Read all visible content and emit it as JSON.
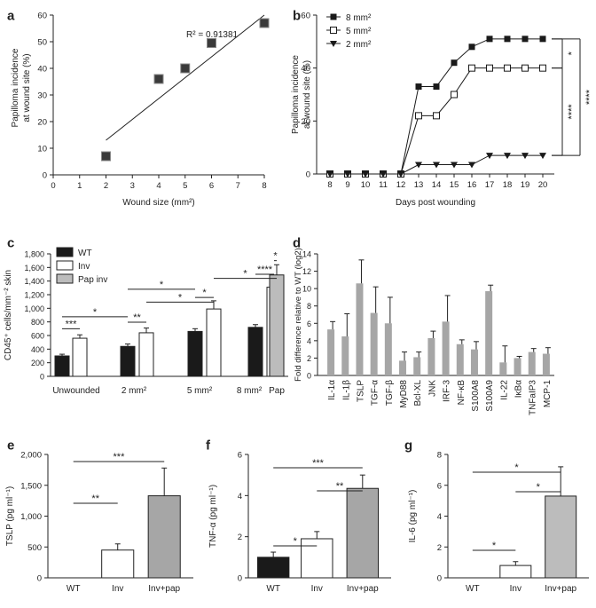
{
  "panel_labels": {
    "a": "a",
    "b": "b",
    "c": "c",
    "d": "d",
    "e": "e",
    "f": "f",
    "g": "g"
  },
  "colors": {
    "black": "#1a1a1a",
    "gray": "#bcbcbc",
    "dgray": "#a6a6a6",
    "white": "#ffffff",
    "axis": "#222222"
  },
  "chart_data": [
    {
      "id": "a",
      "type": "scatter",
      "xlabel": "Wound size (mm²)",
      "ylabel": [
        "Papilloma incidence",
        "at wound site (%)"
      ],
      "xlim": [
        0,
        8
      ],
      "ylim": [
        0,
        60
      ],
      "xticks": [
        "0",
        "1",
        "2",
        "3",
        "4",
        "5",
        "6",
        "7",
        "8"
      ],
      "yticks": [
        "0",
        "10",
        "20",
        "30",
        "40",
        "50",
        "60"
      ],
      "annotation": "R² = 0.91381",
      "x": [
        2,
        4,
        5,
        6,
        8
      ],
      "y": [
        7,
        36,
        40,
        49.5,
        57
      ],
      "fit": {
        "x": [
          2,
          8
        ],
        "y": [
          13,
          60
        ]
      }
    },
    {
      "id": "b",
      "type": "line",
      "xlabel": "Days post wounding",
      "ylabel": [
        "Papilloma incidence",
        "at wound site (%)"
      ],
      "categories": [
        "8",
        "9",
        "10",
        "11",
        "12",
        "13",
        "14",
        "15",
        "16",
        "17",
        "18",
        "19",
        "20"
      ],
      "ylim": [
        0,
        60
      ],
      "yticks": [
        "0",
        "20",
        "40",
        "60"
      ],
      "series": [
        {
          "name": "8 mm²",
          "marker": "square-filled",
          "values": [
            0,
            0,
            0,
            0,
            0,
            33,
            33,
            42,
            48,
            51,
            51,
            51,
            51
          ]
        },
        {
          "name": "5 mm²",
          "marker": "square-open",
          "values": [
            0,
            0,
            0,
            0,
            0,
            22,
            22,
            30,
            40,
            40,
            40,
            40,
            40
          ]
        },
        {
          "name": "2 mm²",
          "marker": "triangle-down",
          "values": [
            0,
            0,
            0,
            0,
            0,
            3.5,
            3.5,
            3.5,
            3.5,
            7,
            7,
            7,
            7
          ]
        }
      ],
      "significance": [
        "*",
        "****",
        "****"
      ]
    },
    {
      "id": "c",
      "type": "bar",
      "ylabel": "CD45⁺ cells/mm⁻² skin",
      "ylim": [
        0,
        1800
      ],
      "yticks": [
        "0",
        "200",
        "400",
        "600",
        "800",
        "1,000",
        "1,200",
        "1,400",
        "1,600",
        "1,800"
      ],
      "groups": [
        "Unwounded",
        "2 mm²",
        "5 mm²",
        "8 mm²",
        "Pap"
      ],
      "legend": [
        "WT",
        "Inv",
        "Pap inv"
      ],
      "bars": [
        {
          "group": "Unwounded",
          "series": "WT",
          "value": 300,
          "err": 25
        },
        {
          "group": "Unwounded",
          "series": "Inv",
          "value": 560,
          "err": 50
        },
        {
          "group": "2 mm²",
          "series": "WT",
          "value": 440,
          "err": 35
        },
        {
          "group": "2 mm²",
          "series": "Inv",
          "value": 640,
          "err": 70
        },
        {
          "group": "5 mm²",
          "series": "WT",
          "value": 660,
          "err": 40
        },
        {
          "group": "5 mm²",
          "series": "Inv",
          "value": 990,
          "err": 120
        },
        {
          "group": "8 mm²",
          "series": "WT",
          "value": 720,
          "err": 40
        },
        {
          "group": "8 mm²",
          "series": "Inv",
          "value": 1310,
          "err": 130
        },
        {
          "group": "Pap",
          "series": "Pap inv",
          "value": 1490,
          "err": 150
        }
      ],
      "significance": [
        "***",
        "*",
        "**",
        "*",
        "*",
        "*",
        "****",
        "*",
        "*"
      ]
    },
    {
      "id": "d",
      "type": "bar",
      "ylabel": "Fold difference relative to WT (log2)",
      "ylim": [
        0,
        14
      ],
      "yticks": [
        "0",
        "2",
        "4",
        "6",
        "8",
        "10",
        "12",
        "14"
      ],
      "categories": [
        "IL-1α",
        "IL-1β",
        "TSLP",
        "TGF-α",
        "TGF-β",
        "MyD88",
        "Bcl-XL",
        "JNK",
        "IRF-3",
        "NF-κB",
        "S100A8",
        "S100A9",
        "IL-22",
        "IκBα",
        "TNFaIP3",
        "MCP-1"
      ],
      "values": [
        5.3,
        4.5,
        10.6,
        7.2,
        6.0,
        1.7,
        2.1,
        4.3,
        6.2,
        3.6,
        3.0,
        9.7,
        1.5,
        2.0,
        2.7,
        2.5
      ],
      "errors": [
        0.9,
        2.6,
        2.7,
        3.0,
        3.0,
        1.0,
        0.6,
        0.8,
        3.0,
        0.5,
        0.9,
        0.7,
        1.9,
        0.2,
        0.4,
        0.7
      ]
    },
    {
      "id": "e",
      "type": "bar",
      "ylabel": "TSLP (pg ml⁻¹)",
      "ylim": [
        0,
        2000
      ],
      "yticks": [
        "0",
        "500",
        "1,000",
        "1,500",
        "2,000"
      ],
      "categories": [
        "WT",
        "Inv",
        "Inv+pap"
      ],
      "values": [
        0,
        450,
        1330
      ],
      "errors": [
        0,
        100,
        450
      ],
      "significance": [
        "**",
        "***"
      ]
    },
    {
      "id": "f",
      "type": "bar",
      "ylabel": "TNF-α (pg ml⁻¹)",
      "ylim": [
        0,
        6
      ],
      "yticks": [
        "0",
        "2",
        "4",
        "6"
      ],
      "categories": [
        "WT",
        "Inv",
        "Inv+pap"
      ],
      "values": [
        1.0,
        1.9,
        4.35
      ],
      "errors": [
        0.25,
        0.35,
        0.65
      ],
      "significance": [
        "*",
        "***",
        "**"
      ]
    },
    {
      "id": "g",
      "type": "bar",
      "ylabel": "IL-6 (pg ml⁻¹)",
      "ylim": [
        0,
        8
      ],
      "yticks": [
        "0",
        "2",
        "4",
        "6",
        "8"
      ],
      "categories": [
        "WT",
        "Inv",
        "Inv+pap"
      ],
      "values": [
        0,
        0.8,
        5.3
      ],
      "errors": [
        0,
        0.25,
        1.9
      ],
      "significance": [
        "*",
        "*",
        "*"
      ]
    }
  ]
}
